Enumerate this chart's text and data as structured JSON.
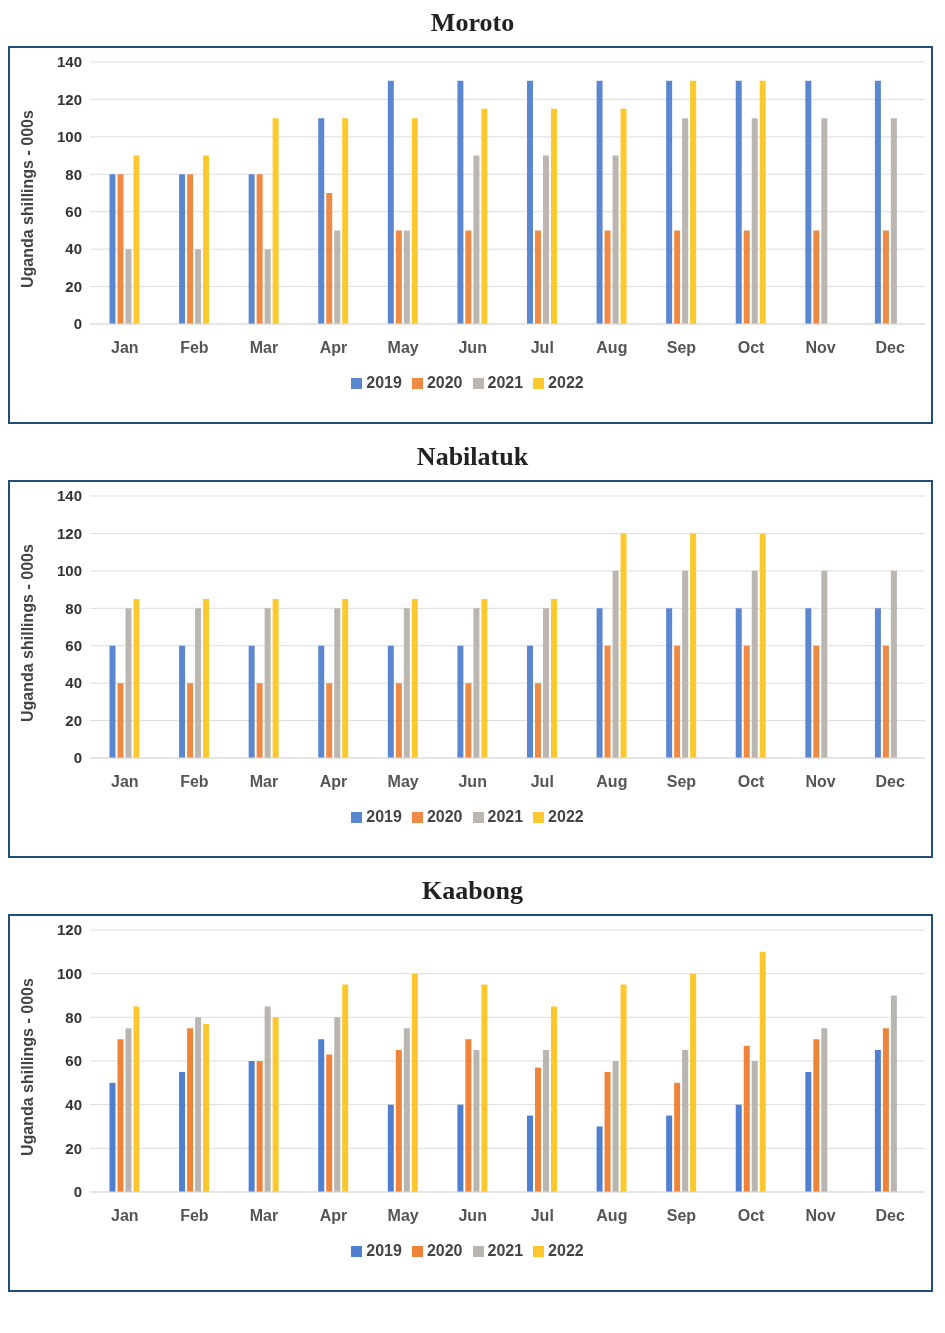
{
  "chart_data": [
    {
      "type": "bar",
      "title": "Moroto",
      "ylabel": "Uganda shillings - 000s",
      "categories": [
        "Jan",
        "Feb",
        "Mar",
        "Apr",
        "May",
        "Jun",
        "Jul",
        "Aug",
        "Sep",
        "Oct",
        "Nov",
        "Dec"
      ],
      "ylim": [
        0,
        140
      ],
      "yticks": [
        0,
        20,
        40,
        60,
        80,
        100,
        120,
        140
      ],
      "grid": "y",
      "legend": "bottom",
      "series": [
        {
          "name": "2019",
          "color": "#5b87d0",
          "values": [
            80,
            80,
            80,
            110,
            130,
            130,
            130,
            130,
            130,
            130,
            130,
            130
          ]
        },
        {
          "name": "2020",
          "color": "#ef8a45",
          "values": [
            80,
            80,
            80,
            70,
            50,
            50,
            50,
            50,
            50,
            50,
            50,
            50
          ]
        },
        {
          "name": "2021",
          "color": "#bbb6b0",
          "values": [
            40,
            40,
            40,
            50,
            50,
            90,
            90,
            90,
            110,
            110,
            110,
            110
          ]
        },
        {
          "name": "2022",
          "color": "#fbc92d",
          "values": [
            90,
            90,
            110,
            110,
            110,
            115,
            115,
            115,
            130,
            130,
            null,
            null
          ]
        }
      ]
    },
    {
      "type": "bar",
      "title": "Nabilatuk",
      "ylabel": "Uganda shillings - 000s",
      "categories": [
        "Jan",
        "Feb",
        "Mar",
        "Apr",
        "May",
        "Jun",
        "Jul",
        "Aug",
        "Sep",
        "Oct",
        "Nov",
        "Dec"
      ],
      "ylim": [
        0,
        140
      ],
      "yticks": [
        0,
        20,
        40,
        60,
        80,
        100,
        120,
        140
      ],
      "grid": "y",
      "legend": "bottom",
      "series": [
        {
          "name": "2019",
          "color": "#5b87d0",
          "values": [
            60,
            60,
            60,
            60,
            60,
            60,
            60,
            80,
            80,
            80,
            80,
            80
          ]
        },
        {
          "name": "2020",
          "color": "#ef8a45",
          "values": [
            40,
            40,
            40,
            40,
            40,
            40,
            40,
            60,
            60,
            60,
            60,
            60
          ]
        },
        {
          "name": "2021",
          "color": "#bbb6b0",
          "values": [
            80,
            80,
            80,
            80,
            80,
            80,
            80,
            100,
            100,
            100,
            100,
            100
          ]
        },
        {
          "name": "2022",
          "color": "#fbc92d",
          "values": [
            85,
            85,
            85,
            85,
            85,
            85,
            85,
            120,
            120,
            120,
            null,
            null
          ]
        }
      ]
    },
    {
      "type": "bar",
      "title": "Kaabong",
      "ylabel": "Uganda shillings - 000s",
      "categories": [
        "Jan",
        "Feb",
        "Mar",
        "Apr",
        "May",
        "Jun",
        "Jul",
        "Aug",
        "Sep",
        "Oct",
        "Nov",
        "Dec"
      ],
      "ylim": [
        0,
        120
      ],
      "yticks": [
        0,
        20,
        40,
        60,
        80,
        100,
        120
      ],
      "grid": "y",
      "legend": "bottom",
      "series": [
        {
          "name": "2019",
          "color": "#4f7fd0",
          "values": [
            50,
            55,
            60,
            70,
            40,
            40,
            35,
            30,
            35,
            40,
            55,
            65
          ]
        },
        {
          "name": "2020",
          "color": "#f0833a",
          "values": [
            70,
            75,
            60,
            63,
            65,
            70,
            57,
            55,
            50,
            67,
            70,
            75
          ]
        },
        {
          "name": "2021",
          "color": "#b9b5b0",
          "values": [
            75,
            80,
            85,
            80,
            75,
            65,
            65,
            60,
            65,
            60,
            75,
            90
          ]
        },
        {
          "name": "2022",
          "color": "#fcc72c",
          "values": [
            85,
            77,
            80,
            95,
            100,
            95,
            85,
            95,
            100,
            110,
            null,
            null
          ]
        }
      ]
    }
  ]
}
